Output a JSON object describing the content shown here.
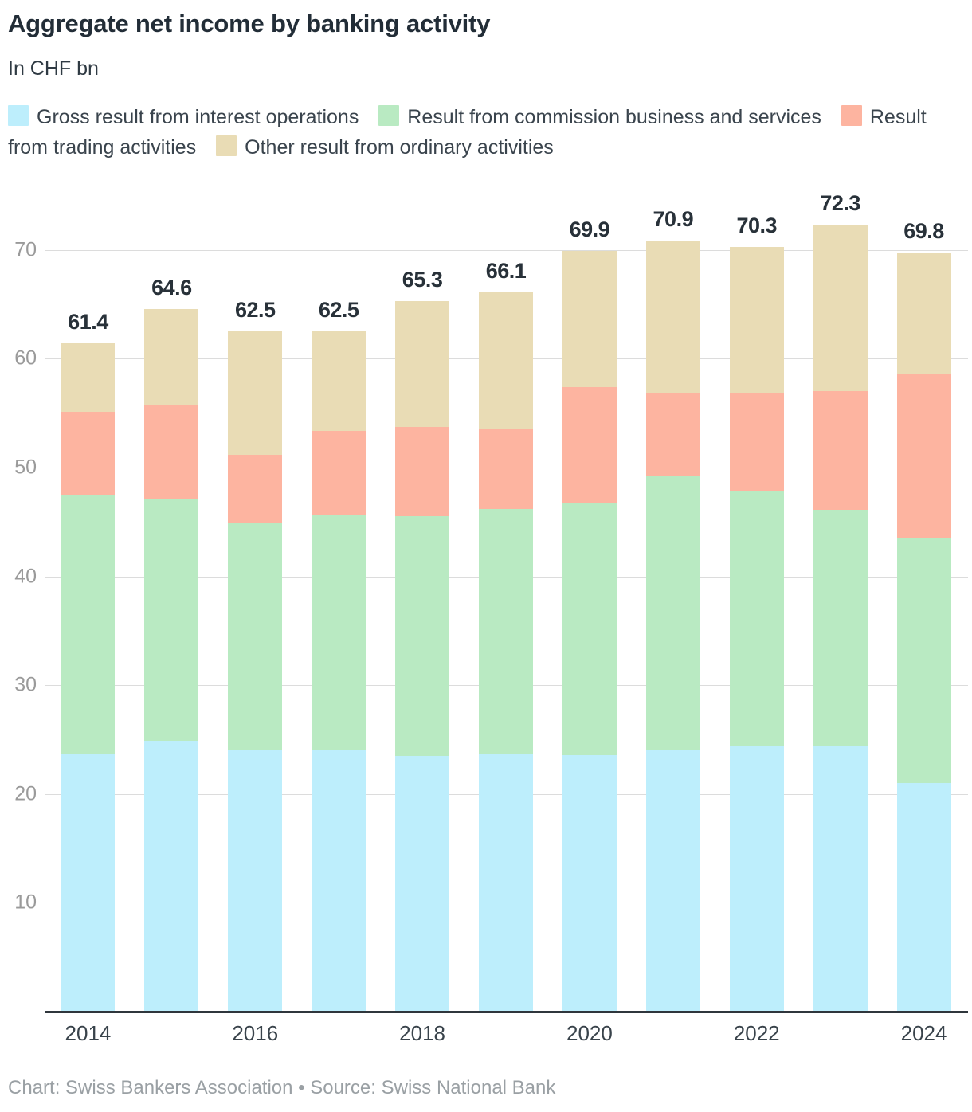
{
  "header": {
    "title": "Aggregate net income by banking activity",
    "subtitle": "In CHF bn"
  },
  "legend": {
    "items": [
      {
        "label": "Gross result from interest operations",
        "color": "#bdeefc"
      },
      {
        "label": "Result from commission business and services",
        "color": "#b9eac2"
      },
      {
        "label": "Result from trading activities",
        "color": "#fdb4a0"
      },
      {
        "label": "Other result from ordinary activities",
        "color": "#e9dcb5"
      }
    ]
  },
  "chart_data": {
    "type": "bar",
    "stacked": true,
    "title": "Aggregate net income by banking activity",
    "subtitle": "In CHF bn",
    "unit": "CHF bn",
    "categories": [
      "2014",
      "2015",
      "2016",
      "2017",
      "2018",
      "2019",
      "2020",
      "2021",
      "2022",
      "2023",
      "2024"
    ],
    "x_axis_labels_shown": [
      "2014",
      "2016",
      "2018",
      "2020",
      "2022",
      "2024"
    ],
    "series": [
      {
        "name": "Gross result from interest operations",
        "color": "#bdeefc",
        "values": [
          23.7,
          24.9,
          24.1,
          24.0,
          23.5,
          23.7,
          23.6,
          24.0,
          24.4,
          24.4,
          21.0
        ]
      },
      {
        "name": "Result from commission business and services",
        "color": "#b9eac2",
        "values": [
          23.8,
          22.2,
          20.8,
          21.7,
          22.0,
          22.5,
          23.1,
          25.2,
          23.5,
          21.7,
          22.5
        ]
      },
      {
        "name": "Result from trading activities",
        "color": "#fdb4a0",
        "values": [
          7.6,
          8.6,
          6.3,
          7.7,
          8.2,
          7.4,
          10.7,
          7.7,
          9.0,
          10.9,
          15.1
        ]
      },
      {
        "name": "Other result from ordinary activities",
        "color": "#e9dcb5",
        "values": [
          6.3,
          8.9,
          11.3,
          9.1,
          11.6,
          12.5,
          12.5,
          14.0,
          13.4,
          15.3,
          11.2
        ]
      }
    ],
    "totals": [
      61.4,
      64.6,
      62.5,
      62.5,
      65.3,
      66.1,
      69.9,
      70.9,
      70.3,
      72.3,
      69.8
    ],
    "yticks": [
      10,
      20,
      30,
      40,
      50,
      60,
      70
    ],
    "ylim": [
      0,
      75
    ],
    "grid": true,
    "legend_position": "top",
    "colors": {
      "gridline": "#dcdcdc",
      "axis_line": "#2f363c",
      "total_label": "#283139",
      "ytick_label": "#9a9a9a",
      "xtick_label": "#39434b"
    }
  },
  "footer": {
    "text": "Chart: Swiss Bankers Association • Source: Swiss National Bank"
  }
}
